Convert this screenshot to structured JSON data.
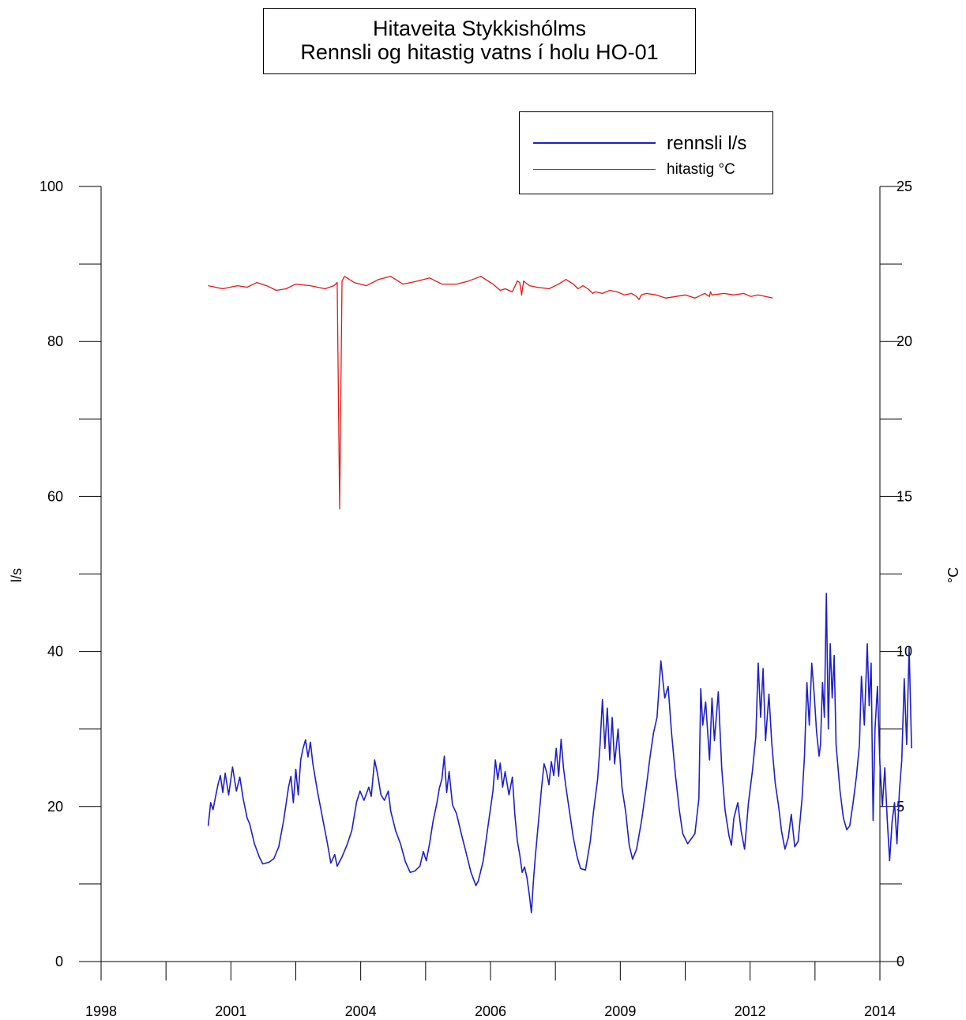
{
  "chart_data": {
    "type": "line",
    "title": "Hitaveita Stykkishólms",
    "subtitle": "Rennsli og hitastig vatns í holu HO-01",
    "ylabel_left": "l/s",
    "ylabel_right": "°C",
    "xlim": [
      1998,
      2014
    ],
    "ylim_left": [
      0,
      100
    ],
    "ylim_right": [
      0,
      25
    ],
    "left_ticks": [
      "0",
      "20",
      "40",
      "60",
      "80",
      "100"
    ],
    "right_ticks": [
      "0",
      "5",
      "10",
      "15",
      "20",
      "25"
    ],
    "x_tick_labels": [
      "1998",
      "2001",
      "2004",
      "2006",
      "2009",
      "2012",
      "2014"
    ],
    "grid": false,
    "legend_position": "top-right",
    "series": [
      {
        "name": "rennsli l/s",
        "axis": "left",
        "color": "#1f1fc8",
        "points": [
          [
            2000.2,
            17.5
          ],
          [
            2000.25,
            20.5
          ],
          [
            2000.3,
            19.6
          ],
          [
            2000.4,
            22.8
          ],
          [
            2000.45,
            24.0
          ],
          [
            2000.5,
            21.8
          ],
          [
            2000.55,
            24.3
          ],
          [
            2000.62,
            21.5
          ],
          [
            2000.7,
            25.1
          ],
          [
            2000.78,
            22.0
          ],
          [
            2000.85,
            23.8
          ],
          [
            2000.92,
            21.0
          ],
          [
            2001.0,
            18.5
          ],
          [
            2001.05,
            17.8
          ],
          [
            2001.15,
            15.2
          ],
          [
            2001.25,
            13.5
          ],
          [
            2001.32,
            12.6
          ],
          [
            2001.45,
            12.8
          ],
          [
            2001.55,
            13.3
          ],
          [
            2001.65,
            14.8
          ],
          [
            2001.75,
            18.2
          ],
          [
            2001.85,
            22.5
          ],
          [
            2001.9,
            23.9
          ],
          [
            2001.95,
            20.5
          ],
          [
            2002.0,
            24.8
          ],
          [
            2002.05,
            21.5
          ],
          [
            2002.1,
            26.0
          ],
          [
            2002.15,
            27.5
          ],
          [
            2002.2,
            28.6
          ],
          [
            2002.25,
            26.4
          ],
          [
            2002.3,
            28.3
          ],
          [
            2002.35,
            25.5
          ],
          [
            2002.45,
            21.8
          ],
          [
            2002.55,
            18.5
          ],
          [
            2002.65,
            15.2
          ],
          [
            2002.72,
            12.7
          ],
          [
            2002.8,
            13.8
          ],
          [
            2002.85,
            12.3
          ],
          [
            2002.95,
            13.5
          ],
          [
            2003.05,
            15.0
          ],
          [
            2003.15,
            16.9
          ],
          [
            2003.25,
            20.6
          ],
          [
            2003.32,
            22.0
          ],
          [
            2003.4,
            20.8
          ],
          [
            2003.5,
            22.5
          ],
          [
            2003.55,
            21.3
          ],
          [
            2003.62,
            26.0
          ],
          [
            2003.68,
            24.2
          ],
          [
            2003.75,
            21.5
          ],
          [
            2003.82,
            20.8
          ],
          [
            2003.9,
            22.0
          ],
          [
            2003.95,
            19.4
          ],
          [
            2004.05,
            16.9
          ],
          [
            2004.15,
            15.2
          ],
          [
            2004.25,
            12.9
          ],
          [
            2004.35,
            11.5
          ],
          [
            2004.45,
            11.7
          ],
          [
            2004.55,
            12.3
          ],
          [
            2004.62,
            14.2
          ],
          [
            2004.68,
            13.0
          ],
          [
            2004.75,
            15.3
          ],
          [
            2004.82,
            18.1
          ],
          [
            2004.9,
            20.5
          ],
          [
            2004.95,
            22.4
          ],
          [
            2005.0,
            23.5
          ],
          [
            2005.05,
            26.5
          ],
          [
            2005.1,
            21.8
          ],
          [
            2005.15,
            24.5
          ],
          [
            2005.22,
            20.2
          ],
          [
            2005.3,
            19.1
          ],
          [
            2005.4,
            16.5
          ],
          [
            2005.5,
            14.0
          ],
          [
            2005.6,
            11.5
          ],
          [
            2005.7,
            9.8
          ],
          [
            2005.75,
            10.4
          ],
          [
            2005.85,
            13.0
          ],
          [
            2005.95,
            17.5
          ],
          [
            2006.05,
            22.0
          ],
          [
            2006.1,
            26.0
          ],
          [
            2006.15,
            23.5
          ],
          [
            2006.2,
            25.6
          ],
          [
            2006.25,
            22.5
          ],
          [
            2006.3,
            24.5
          ],
          [
            2006.38,
            21.5
          ],
          [
            2006.45,
            23.8
          ],
          [
            2006.5,
            19.0
          ],
          [
            2006.55,
            15.6
          ],
          [
            2006.6,
            13.8
          ],
          [
            2006.65,
            11.5
          ],
          [
            2006.7,
            12.2
          ],
          [
            2006.75,
            10.8
          ],
          [
            2006.8,
            8.5
          ],
          [
            2006.84,
            6.3
          ],
          [
            2006.88,
            10.2
          ],
          [
            2006.92,
            13.5
          ],
          [
            2007.0,
            19.0
          ],
          [
            2007.05,
            22.5
          ],
          [
            2007.1,
            25.5
          ],
          [
            2007.15,
            24.5
          ],
          [
            2007.2,
            22.8
          ],
          [
            2007.25,
            25.8
          ],
          [
            2007.3,
            24.0
          ],
          [
            2007.35,
            27.5
          ],
          [
            2007.4,
            23.9
          ],
          [
            2007.45,
            28.7
          ],
          [
            2007.5,
            25.0
          ],
          [
            2007.55,
            22.5
          ],
          [
            2007.62,
            19.5
          ],
          [
            2007.7,
            16.0
          ],
          [
            2007.78,
            13.5
          ],
          [
            2007.85,
            12.0
          ],
          [
            2007.95,
            11.8
          ],
          [
            2008.05,
            15.5
          ],
          [
            2008.12,
            19.5
          ],
          [
            2008.2,
            23.5
          ],
          [
            2008.25,
            28.0
          ],
          [
            2008.3,
            33.8
          ],
          [
            2008.35,
            27.5
          ],
          [
            2008.4,
            32.7
          ],
          [
            2008.45,
            26.0
          ],
          [
            2008.5,
            31.5
          ],
          [
            2008.55,
            25.5
          ],
          [
            2008.62,
            30.0
          ],
          [
            2008.7,
            22.5
          ],
          [
            2008.78,
            19.2
          ],
          [
            2008.85,
            15.0
          ],
          [
            2008.92,
            13.2
          ],
          [
            2009.0,
            14.5
          ],
          [
            2009.1,
            18.0
          ],
          [
            2009.2,
            22.5
          ],
          [
            2009.28,
            26.5
          ],
          [
            2009.35,
            29.5
          ],
          [
            2009.42,
            31.5
          ],
          [
            2009.5,
            38.8
          ],
          [
            2009.58,
            34.0
          ],
          [
            2009.65,
            35.5
          ],
          [
            2009.72,
            29.5
          ],
          [
            2009.8,
            24.0
          ],
          [
            2009.88,
            19.5
          ],
          [
            2009.95,
            16.5
          ],
          [
            2010.05,
            15.2
          ],
          [
            2010.12,
            15.8
          ],
          [
            2010.2,
            16.5
          ],
          [
            2010.28,
            21.0
          ],
          [
            2010.32,
            35.2
          ],
          [
            2010.36,
            30.5
          ],
          [
            2010.42,
            33.5
          ],
          [
            2010.5,
            26.0
          ],
          [
            2010.55,
            34.0
          ],
          [
            2010.6,
            28.5
          ],
          [
            2010.68,
            34.8
          ],
          [
            2010.75,
            25.0
          ],
          [
            2010.82,
            19.5
          ],
          [
            2010.9,
            16.2
          ],
          [
            2010.95,
            15.0
          ],
          [
            2011.0,
            18.5
          ],
          [
            2011.08,
            20.5
          ],
          [
            2011.15,
            16.8
          ],
          [
            2011.22,
            14.5
          ],
          [
            2011.3,
            20.5
          ],
          [
            2011.38,
            24.5
          ],
          [
            2011.45,
            29.0
          ],
          [
            2011.5,
            38.5
          ],
          [
            2011.55,
            31.5
          ],
          [
            2011.6,
            37.8
          ],
          [
            2011.65,
            28.5
          ],
          [
            2011.72,
            34.5
          ],
          [
            2011.78,
            28.0
          ],
          [
            2011.85,
            23.0
          ],
          [
            2011.92,
            20.0
          ],
          [
            2011.98,
            16.8
          ],
          [
            2012.05,
            14.5
          ],
          [
            2012.12,
            16.0
          ],
          [
            2012.18,
            19.0
          ],
          [
            2012.25,
            14.8
          ],
          [
            2012.32,
            15.5
          ],
          [
            2012.4,
            21.0
          ],
          [
            2012.45,
            26.5
          ],
          [
            2012.5,
            36.0
          ],
          [
            2012.55,
            30.5
          ],
          [
            2012.6,
            38.5
          ],
          [
            2012.65,
            34.5
          ],
          [
            2012.7,
            29.5
          ],
          [
            2012.75,
            26.5
          ],
          [
            2012.78,
            28.0
          ],
          [
            2012.82,
            36.0
          ],
          [
            2012.86,
            31.5
          ],
          [
            2012.9,
            47.5
          ],
          [
            2012.94,
            30.0
          ],
          [
            2012.98,
            41.0
          ],
          [
            2013.02,
            34.0
          ],
          [
            2013.06,
            39.5
          ],
          [
            2013.1,
            28.0
          ],
          [
            2013.18,
            22.0
          ],
          [
            2013.25,
            18.5
          ],
          [
            2013.32,
            17.0
          ],
          [
            2013.38,
            17.5
          ],
          [
            2013.45,
            20.5
          ],
          [
            2013.52,
            24.0
          ],
          [
            2013.58,
            28.0
          ],
          [
            2013.62,
            36.8
          ],
          [
            2013.68,
            30.5
          ],
          [
            2013.74,
            41.0
          ],
          [
            2013.78,
            33.0
          ],
          [
            2013.82,
            38.5
          ],
          [
            2013.86,
            18.2
          ],
          [
            2013.9,
            30.0
          ],
          [
            2013.95,
            35.5
          ],
          [
            2014.0,
            25.5
          ],
          [
            2014.05,
            20.0
          ],
          [
            2014.1,
            25.0
          ],
          [
            2014.15,
            18.5
          ],
          [
            2014.2,
            13.0
          ],
          [
            2014.25,
            18.0
          ],
          [
            2014.3,
            20.5
          ],
          [
            2014.35,
            15.2
          ],
          [
            2014.4,
            22.0
          ],
          [
            2014.45,
            26.0
          ],
          [
            2014.5,
            36.5
          ],
          [
            2014.55,
            28.0
          ],
          [
            2014.6,
            40.5
          ],
          [
            2014.65,
            27.5
          ]
        ]
      },
      {
        "name": "hitastig °C",
        "axis": "right",
        "color": "#e01818",
        "points": [
          [
            2000.2,
            21.8
          ],
          [
            2000.5,
            21.7
          ],
          [
            2000.8,
            21.8
          ],
          [
            2001.0,
            21.75
          ],
          [
            2001.2,
            21.9
          ],
          [
            2001.4,
            21.8
          ],
          [
            2001.6,
            21.65
          ],
          [
            2001.8,
            21.7
          ],
          [
            2002.0,
            21.85
          ],
          [
            2002.3,
            21.8
          ],
          [
            2002.6,
            21.7
          ],
          [
            2002.78,
            21.8
          ],
          [
            2002.85,
            21.9
          ],
          [
            2002.9,
            14.6
          ],
          [
            2002.95,
            21.95
          ],
          [
            2003.0,
            22.1
          ],
          [
            2003.2,
            21.9
          ],
          [
            2003.45,
            21.8
          ],
          [
            2003.7,
            22.0
          ],
          [
            2003.95,
            22.1
          ],
          [
            2004.2,
            21.85
          ],
          [
            2004.5,
            21.95
          ],
          [
            2004.75,
            22.05
          ],
          [
            2005.0,
            21.85
          ],
          [
            2005.3,
            21.85
          ],
          [
            2005.55,
            21.95
          ],
          [
            2005.8,
            22.1
          ],
          [
            2006.05,
            21.85
          ],
          [
            2006.2,
            21.65
          ],
          [
            2006.3,
            21.7
          ],
          [
            2006.45,
            21.6
          ],
          [
            2006.55,
            21.95
          ],
          [
            2006.6,
            21.9
          ],
          [
            2006.64,
            21.5
          ],
          [
            2006.68,
            21.95
          ],
          [
            2006.8,
            21.8
          ],
          [
            2006.95,
            21.75
          ],
          [
            2007.2,
            21.7
          ],
          [
            2007.4,
            21.85
          ],
          [
            2007.55,
            22.0
          ],
          [
            2007.7,
            21.85
          ],
          [
            2007.8,
            21.7
          ],
          [
            2007.9,
            21.8
          ],
          [
            2008.0,
            21.7
          ],
          [
            2008.1,
            21.55
          ],
          [
            2008.15,
            21.6
          ],
          [
            2008.3,
            21.55
          ],
          [
            2008.45,
            21.65
          ],
          [
            2008.6,
            21.6
          ],
          [
            2008.75,
            21.5
          ],
          [
            2008.9,
            21.55
          ],
          [
            2009.0,
            21.45
          ],
          [
            2009.05,
            21.35
          ],
          [
            2009.1,
            21.5
          ],
          [
            2009.2,
            21.55
          ],
          [
            2009.4,
            21.5
          ],
          [
            2009.6,
            21.4
          ],
          [
            2009.8,
            21.45
          ],
          [
            2010.0,
            21.5
          ],
          [
            2010.2,
            21.4
          ],
          [
            2010.4,
            21.55
          ],
          [
            2010.5,
            21.45
          ],
          [
            2010.52,
            21.6
          ],
          [
            2010.55,
            21.5
          ],
          [
            2010.8,
            21.55
          ],
          [
            2011.0,
            21.5
          ],
          [
            2011.2,
            21.55
          ],
          [
            2011.35,
            21.45
          ],
          [
            2011.5,
            21.5
          ],
          [
            2011.65,
            21.45
          ],
          [
            2011.8,
            21.4
          ]
        ]
      }
    ]
  }
}
